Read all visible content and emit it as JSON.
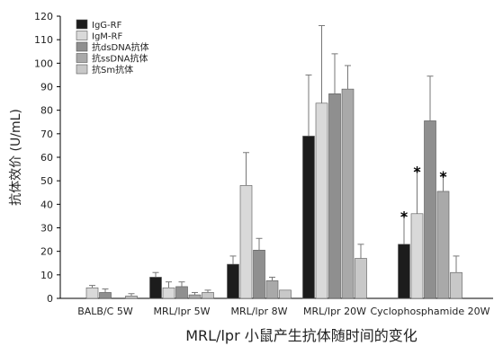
{
  "chart_data": {
    "type": "bar",
    "title": "",
    "xlabel": "MRL/lpr 小鼠产生抗体随时间的变化",
    "ylabel": "抗体效价 (U/mL)",
    "ylim": [
      0,
      120
    ],
    "yticks": [
      0,
      10,
      20,
      30,
      40,
      50,
      60,
      70,
      80,
      90,
      100,
      110,
      120
    ],
    "grid": false,
    "legend_position": "top-left",
    "categories": [
      "BALB/C 5W",
      "MRL/lpr 5W",
      "MRL/lpr 8W",
      "MRL/lpr 20W",
      "Cyclophosphamide 20W"
    ],
    "series": [
      {
        "name": "IgG-RF",
        "color": "#1c1c1c",
        "values": [
          0,
          9,
          14.5,
          69,
          23
        ],
        "errors": [
          0,
          2,
          3.5,
          26,
          12
        ]
      },
      {
        "name": "IgM-RF",
        "color": "#d9d9d9",
        "values": [
          4.5,
          4.5,
          48,
          83,
          36
        ],
        "errors": [
          1,
          2.5,
          14,
          33,
          18
        ]
      },
      {
        "name": "抗dsDNA抗体",
        "color": "#8f8f8f",
        "values": [
          2.5,
          5,
          20.5,
          87,
          75.5
        ],
        "errors": [
          1.5,
          2,
          5,
          17,
          19
        ]
      },
      {
        "name": "抗ssDNA抗体",
        "color": "#a9a9a9",
        "values": [
          0,
          1.5,
          7.5,
          89,
          45.5
        ],
        "errors": [
          0,
          1,
          1.5,
          10,
          6.5
        ]
      },
      {
        "name": "抗Sm抗体",
        "color": "#c8c8c8",
        "values": [
          1,
          2.5,
          3.5,
          17,
          11
        ],
        "errors": [
          1,
          1,
          0,
          6,
          7
        ]
      }
    ],
    "annotations": [
      {
        "text": "*",
        "category": "Cyclophosphamide 20W",
        "series": "IgG-RF"
      },
      {
        "text": "*",
        "category": "Cyclophosphamide 20W",
        "series": "IgM-RF"
      },
      {
        "text": "*",
        "category": "Cyclophosphamide 20W",
        "series": "抗ssDNA抗体"
      }
    ]
  }
}
